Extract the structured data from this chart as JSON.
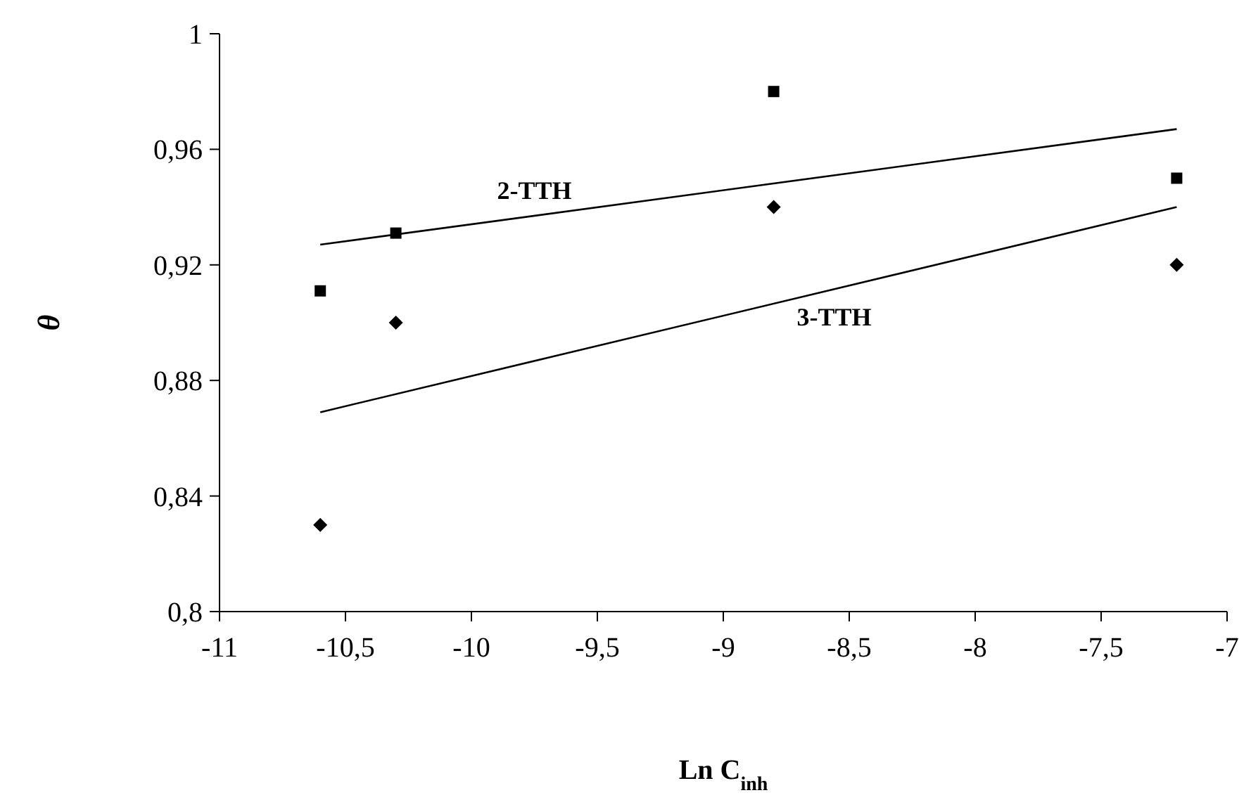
{
  "chart_data": {
    "type": "scatter",
    "xlabel": "Ln C$_{inh}$",
    "ylabel": "θ",
    "xlim": [
      -11,
      -7
    ],
    "ylim": [
      0.8,
      1
    ],
    "xticks": [
      -11,
      {
        "value": -10.5,
        "label": "-10,5"
      },
      -10,
      {
        "value": -9.5,
        "label": "-9,5"
      },
      -9,
      {
        "value": -8.5,
        "label": "-8,5"
      },
      -8,
      {
        "value": -7.5,
        "label": "-7,5"
      },
      -7
    ],
    "yticks": [
      {
        "value": 0.8,
        "label": "0,8"
      },
      {
        "value": 0.84,
        "label": "0,84"
      },
      {
        "value": 0.88,
        "label": "0,88"
      },
      {
        "value": 0.92,
        "label": "0,92"
      },
      {
        "value": 0.96,
        "label": "0,96"
      },
      1
    ],
    "grid": false,
    "series": [
      {
        "marker": "square",
        "color": "#000000",
        "x": [
          -10.6,
          -10.3,
          -8.8,
          -7.2
        ],
        "values": [
          0.911,
          0.931,
          0.98,
          0.95
        ]
      },
      {
        "marker": "diamond",
        "color": "#000000",
        "x": [
          -10.6,
          -10.3,
          -8.8,
          -7.2
        ],
        "values": [
          0.83,
          0.9,
          0.94,
          0.92
        ]
      },
      {
        "type": "line",
        "name": "2-TTH",
        "color": "#000000",
        "x": [
          -10.6,
          -7.2
        ],
        "values": [
          0.927,
          0.967
        ]
      },
      {
        "type": "line",
        "name": "3-TTH",
        "color": "#000000",
        "x": [
          -10.6,
          -7.2
        ],
        "values": [
          0.869,
          0.94
        ]
      }
    ]
  }
}
